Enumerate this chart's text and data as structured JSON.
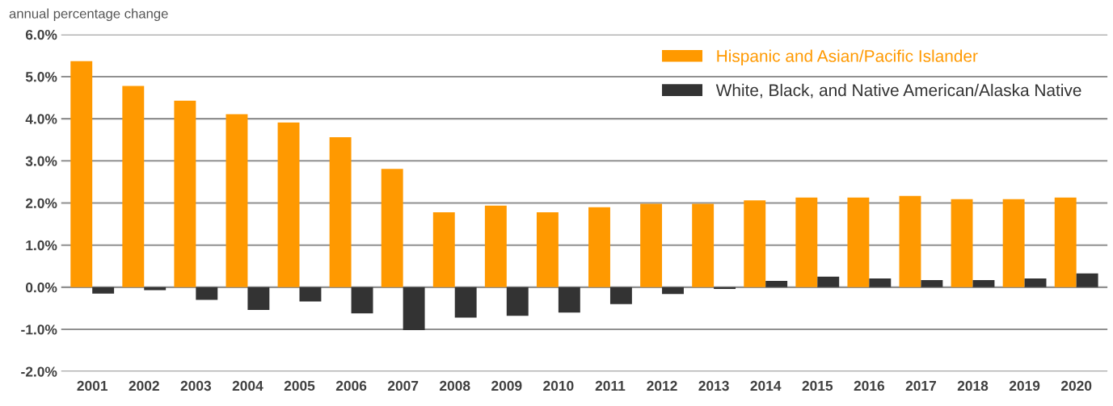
{
  "chart_data": {
    "type": "bar",
    "ylabel": "annual percentage change",
    "categories": [
      "2001",
      "2002",
      "2003",
      "2004",
      "2005",
      "2006",
      "2007",
      "2008",
      "2009",
      "2010",
      "2011",
      "2012",
      "2013",
      "2014",
      "2015",
      "2016",
      "2017",
      "2018",
      "2019",
      "2020"
    ],
    "series": [
      {
        "name": "Hispanic and Asian/Pacific Islander",
        "color": "#ff9900",
        "values": [
          5.37,
          4.78,
          4.43,
          4.11,
          3.91,
          3.56,
          2.81,
          1.78,
          1.94,
          1.78,
          1.9,
          1.98,
          1.98,
          2.06,
          2.13,
          2.13,
          2.17,
          2.09,
          2.09,
          2.13
        ]
      },
      {
        "name": "White, Black, and Native American/Alaska Native",
        "color": "#333333",
        "values": [
          -0.15,
          -0.07,
          -0.3,
          -0.54,
          -0.34,
          -0.62,
          -1.02,
          -0.72,
          -0.68,
          -0.6,
          -0.4,
          -0.16,
          -0.04,
          0.15,
          0.25,
          0.21,
          0.17,
          0.17,
          0.21,
          0.33
        ]
      }
    ],
    "ylim": [
      -2.0,
      6.0
    ],
    "yticks": [
      {
        "value": -2.0,
        "label": "-2.0%"
      },
      {
        "value": -1.0,
        "label": "-1.0%"
      },
      {
        "value": 0.0,
        "label": "0.0%"
      },
      {
        "value": 1.0,
        "label": "1.0%"
      },
      {
        "value": 2.0,
        "label": "2.0%"
      },
      {
        "value": 3.0,
        "label": "3.0%"
      },
      {
        "value": 4.0,
        "label": "4.0%"
      },
      {
        "value": 5.0,
        "label": "5.0%"
      },
      {
        "value": 6.0,
        "label": "6.0%"
      }
    ],
    "grid": "y",
    "legend": "top right"
  }
}
